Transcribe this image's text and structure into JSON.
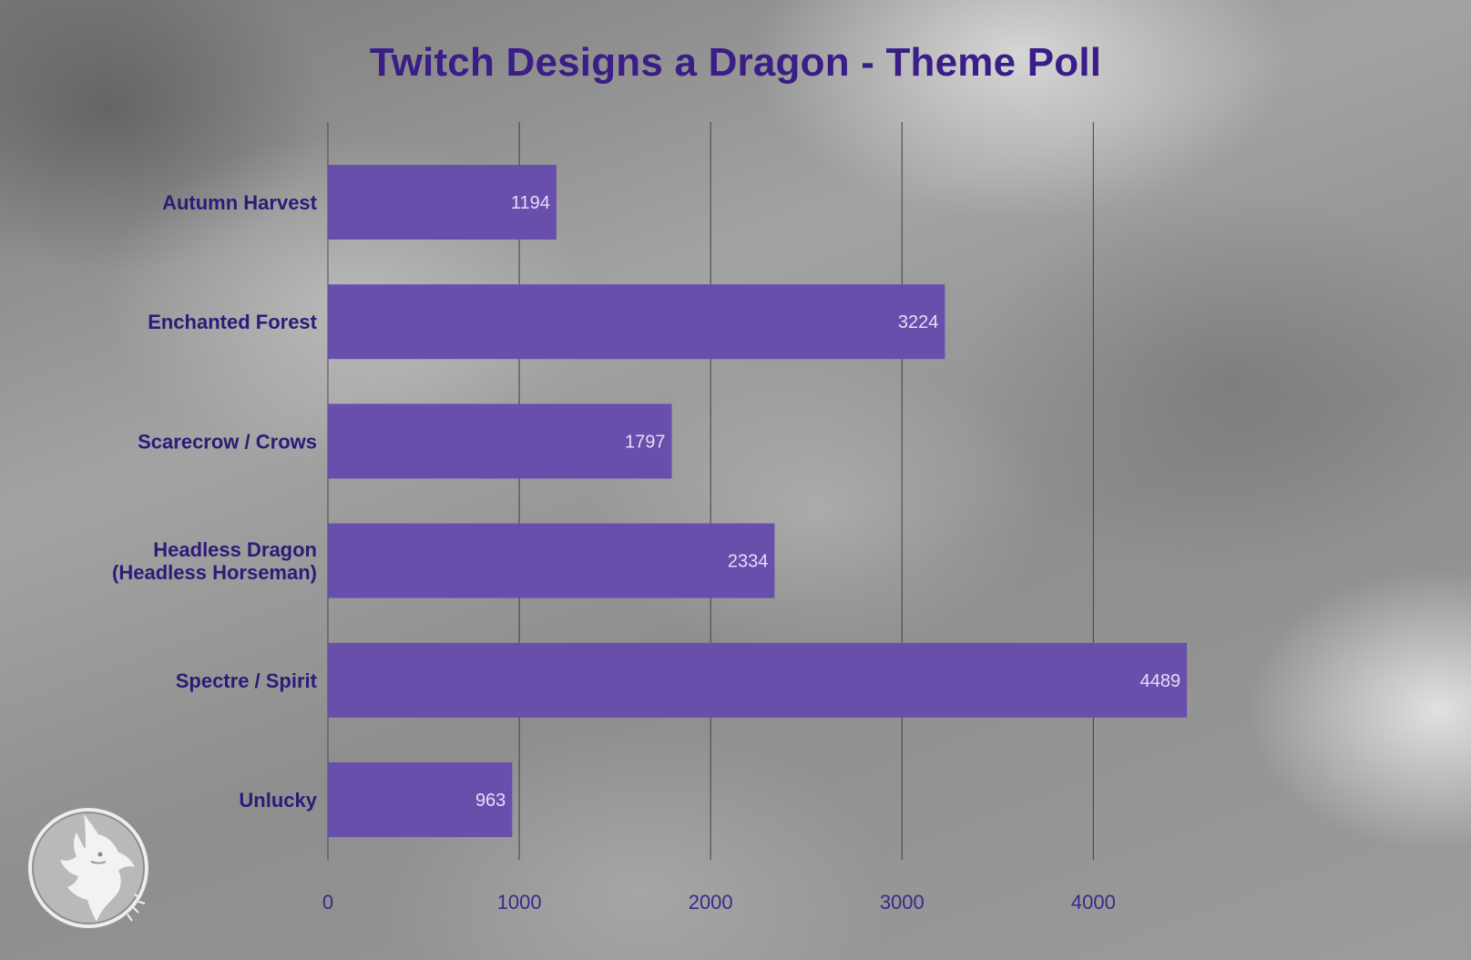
{
  "chart_data": {
    "type": "bar",
    "orientation": "horizontal",
    "title": "Twitch Designs a Dragon - Theme Poll",
    "categories": [
      [
        "Autumn Harvest"
      ],
      [
        "Enchanted Forest"
      ],
      [
        "Scarecrow / Crows"
      ],
      [
        "Headless Dragon",
        "(Headless Horseman)"
      ],
      [
        "Spectre / Spirit"
      ],
      [
        "Unlucky"
      ]
    ],
    "values": [
      1194,
      3224,
      1797,
      2334,
      4489,
      963
    ],
    "value_labels": [
      "1194",
      "3224",
      "1797",
      "2334",
      "4489",
      "963"
    ],
    "xticks": [
      0,
      1000,
      2000,
      3000,
      4000
    ],
    "xtick_labels": [
      "0",
      "1000",
      "2000",
      "3000",
      "4000"
    ],
    "xlim": [
      0,
      5150
    ],
    "grid": "vertical",
    "legend": "none",
    "colors": {
      "bar": "#684fab",
      "title": "#3a1d86",
      "category_label": "#2e1a78",
      "tick_label": "#3a2a8a",
      "data_label": "#e4defa",
      "gridline": "#3c3c3c"
    }
  },
  "logo": {
    "icon": "dragon-head-icon"
  }
}
